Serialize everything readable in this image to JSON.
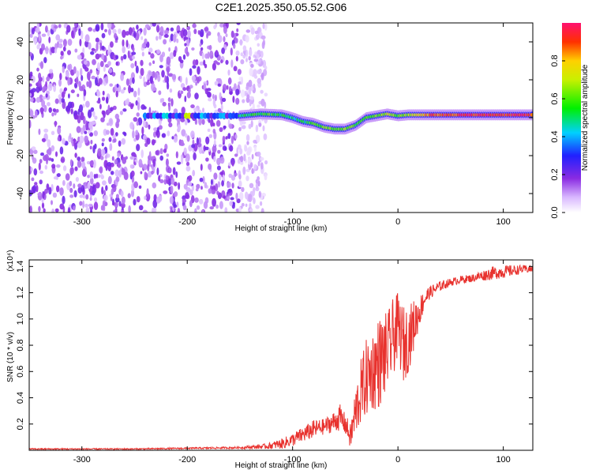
{
  "title": "C2E1.2025.350.05.52.G06",
  "chart_data": [
    {
      "type": "heatmap",
      "name": "spectrogram",
      "xlabel": "Height of straight line (km)",
      "ylabel": "Frequency (Hz)",
      "xlim": [
        -350,
        128
      ],
      "ylim": [
        -50,
        50
      ],
      "x_ticks": [
        -300,
        -200,
        -100,
        0,
        100
      ],
      "y_ticks": [
        -40,
        -20,
        0,
        20,
        40
      ],
      "colorbar": {
        "label": "Normalized spectral amplitude",
        "range": [
          0,
          1
        ],
        "ticks": [
          0.0,
          0.2,
          0.4,
          0.6,
          0.8
        ],
        "tick_labels": [
          "0.0",
          "0.2",
          "0.4",
          "0.6",
          "0.8"
        ]
      },
      "noise_region_x": [
        -350,
        -135
      ],
      "signal_ridge": {
        "x": [
          -150,
          -130,
          -110,
          -100,
          -90,
          -80,
          -70,
          -60,
          -50,
          -40,
          -30,
          -20,
          -10,
          0,
          10,
          30,
          60,
          90,
          128
        ],
        "freq": [
          1,
          2,
          1.5,
          0,
          -2,
          -3,
          -5,
          -6,
          -6,
          -4,
          0,
          1,
          2,
          1,
          1.5,
          1.5,
          1.5,
          1.5,
          1.5
        ],
        "amplitude": [
          0.5,
          0.6,
          0.55,
          0.5,
          0.5,
          0.6,
          0.65,
          0.65,
          0.65,
          0.6,
          0.6,
          0.65,
          0.75,
          0.6,
          0.7,
          0.9,
          0.95,
          0.95,
          0.95
        ]
      }
    },
    {
      "type": "line",
      "name": "snr",
      "xlabel": "Height of straight line (km)",
      "ylabel": "SNR (10 * v/v)",
      "y_scale_label": "(x10⁴)",
      "y_scale": 10000,
      "xlim": [
        -350,
        128
      ],
      "ylim": [
        0,
        1.45
      ],
      "x_ticks": [
        -300,
        -200,
        -100,
        0,
        100
      ],
      "y_ticks": [
        0.2,
        0.4,
        0.6,
        0.8,
        1.0,
        1.2,
        1.4
      ],
      "y_tick_labels": [
        "0.2",
        "0.4",
        "0.6",
        "0.8",
        "1.0",
        "1.2",
        "1.4"
      ],
      "color": "#e8322e",
      "series": [
        {
          "name": "SNR",
          "x": [
            -350,
            -300,
            -250,
            -200,
            -150,
            -125,
            -110,
            -100,
            -90,
            -80,
            -70,
            -60,
            -55,
            -50,
            -45,
            -40,
            -35,
            -30,
            -25,
            -20,
            -15,
            -10,
            -5,
            0,
            5,
            10,
            15,
            20,
            25,
            30,
            40,
            50,
            60,
            70,
            80,
            90,
            100,
            110,
            120,
            128
          ],
          "y": [
            0.01,
            0.01,
            0.01,
            0.015,
            0.02,
            0.03,
            0.05,
            0.08,
            0.12,
            0.16,
            0.18,
            0.22,
            0.25,
            0.2,
            0.1,
            0.3,
            0.45,
            0.55,
            0.6,
            0.65,
            0.7,
            0.75,
            0.85,
            0.95,
            0.8,
            0.85,
            0.95,
            1.05,
            1.15,
            1.2,
            1.25,
            1.28,
            1.3,
            1.31,
            1.33,
            1.35,
            1.36,
            1.37,
            1.38,
            1.38
          ],
          "amplitude": [
            0.005,
            0.005,
            0.005,
            0.006,
            0.008,
            0.02,
            0.04,
            0.05,
            0.06,
            0.07,
            0.06,
            0.08,
            0.1,
            0.08,
            0.1,
            0.2,
            0.25,
            0.3,
            0.3,
            0.35,
            0.35,
            0.3,
            0.3,
            0.25,
            0.3,
            0.25,
            0.2,
            0.12,
            0.08,
            0.05,
            0.04,
            0.03,
            0.03,
            0.03,
            0.04,
            0.05,
            0.05,
            0.04,
            0.03,
            0.03
          ]
        }
      ]
    }
  ]
}
